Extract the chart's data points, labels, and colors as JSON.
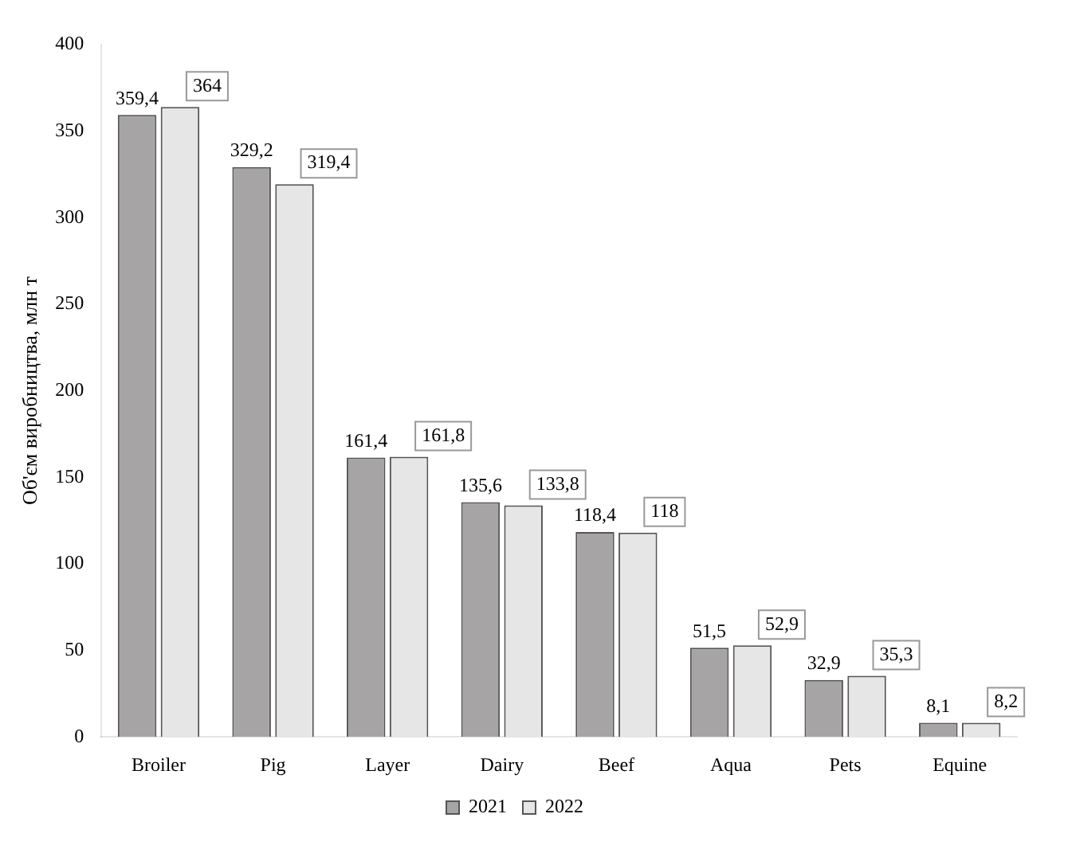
{
  "chart_data": {
    "type": "bar",
    "ylabel": "Об'єм виробництва, млн т",
    "categories": [
      "Broiler",
      "Pig",
      "Layer",
      "Dairy",
      "Beef",
      "Aqua",
      "Pets",
      "Equine"
    ],
    "series": [
      {
        "name": "2021",
        "color": "#a6a4a4",
        "values": [
          359.4,
          329.2,
          161.4,
          135.6,
          118.4,
          51.5,
          32.9,
          8.1
        ],
        "value_labels": [
          "359,4",
          "329,2",
          "161,4",
          "135,6",
          "118,4",
          "51,5",
          "32,9",
          "8,1"
        ]
      },
      {
        "name": "2022",
        "color": "#e6e6e6",
        "values": [
          364,
          319.4,
          161.8,
          133.8,
          118,
          52.9,
          35.3,
          8.2
        ],
        "value_labels": [
          "364",
          "319,4",
          "161,8",
          "133,8",
          "118",
          "52,9",
          "35,3",
          "8,2"
        ]
      }
    ],
    "ylim": [
      0,
      400
    ],
    "yticks": [
      0,
      50,
      100,
      150,
      200,
      250,
      300,
      350,
      400
    ],
    "grid": false,
    "legend": "bottom"
  }
}
